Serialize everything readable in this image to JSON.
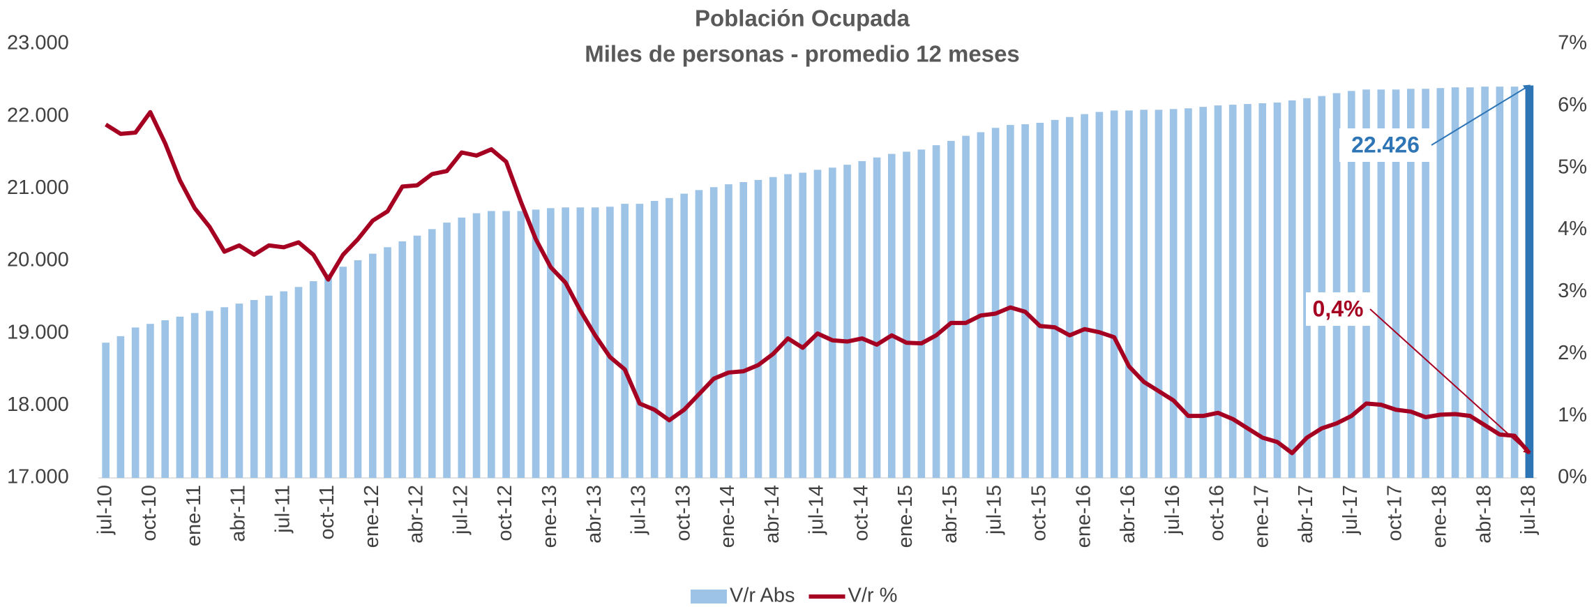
{
  "chart_data": {
    "type": "bar_line",
    "title": "Población Ocupada",
    "subtitle": "Miles de personas - promedio 12 meses",
    "categories": [
      "jul-10",
      null,
      null,
      "oct-10",
      null,
      null,
      "ene-11",
      null,
      null,
      "abr-11",
      null,
      null,
      "jul-11",
      null,
      null,
      "oct-11",
      null,
      null,
      "ene-12",
      null,
      null,
      "abr-12",
      null,
      null,
      "jul-12",
      null,
      null,
      "oct-12",
      null,
      null,
      "ene-13",
      null,
      null,
      "abr-13",
      null,
      null,
      "jul-13",
      null,
      null,
      "oct-13",
      null,
      null,
      "ene-14",
      null,
      null,
      "abr-14",
      null,
      null,
      "jul-14",
      null,
      null,
      "oct-14",
      null,
      null,
      "ene-15",
      null,
      null,
      "abr-15",
      null,
      null,
      "jul-15",
      null,
      null,
      "oct-15",
      null,
      null,
      "ene-16",
      null,
      null,
      "abr-16",
      null,
      null,
      "jul-16",
      null,
      null,
      "oct-16",
      null,
      null,
      "ene-17",
      null,
      null,
      "abr-17",
      null,
      null,
      "jul-17",
      null,
      null,
      "oct-17",
      null,
      null,
      "ene-18",
      null,
      null,
      "abr-18",
      null,
      null,
      "jul-18"
    ],
    "series": [
      {
        "name": "V/r Abs",
        "type": "bar",
        "color": "#9dc3e6",
        "highlight_color": "#2e75b6",
        "values": [
          18870,
          18960,
          19080,
          19130,
          19180,
          19230,
          19280,
          19310,
          19360,
          19410,
          19460,
          19520,
          19580,
          19640,
          19720,
          19820,
          19920,
          20010,
          20100,
          20190,
          20270,
          20350,
          20440,
          20530,
          20600,
          20660,
          20690,
          20690,
          20690,
          20710,
          20730,
          20740,
          20740,
          20740,
          20750,
          20790,
          20790,
          20830,
          20870,
          20930,
          20980,
          21020,
          21060,
          21090,
          21120,
          21160,
          21200,
          21220,
          21260,
          21290,
          21330,
          21380,
          21430,
          21480,
          21510,
          21540,
          21600,
          21660,
          21730,
          21780,
          21840,
          21880,
          21890,
          21910,
          21950,
          21990,
          22030,
          22060,
          22080,
          22080,
          22090,
          22090,
          22100,
          22110,
          22130,
          22150,
          22160,
          22170,
          22180,
          22190,
          22220,
          22250,
          22280,
          22320,
          22350,
          22370,
          22370,
          22370,
          22380,
          22380,
          22390,
          22400,
          22400,
          22410,
          22410,
          22410,
          22426
        ],
        "value_labels": [
          null,
          null,
          null,
          null,
          null,
          null,
          null,
          null,
          null,
          null,
          null,
          null,
          null,
          null,
          null,
          null,
          null,
          null,
          null,
          null,
          null,
          null,
          null,
          null,
          null,
          null,
          null,
          null,
          null,
          null,
          null,
          null,
          null,
          null,
          null,
          null,
          null,
          null,
          null,
          null,
          null,
          null,
          null,
          null,
          null,
          null,
          null,
          null,
          null,
          null,
          null,
          null,
          null,
          null,
          null,
          null,
          null,
          null,
          null,
          null,
          null,
          null,
          null,
          null,
          null,
          null,
          null,
          null,
          null,
          null,
          null,
          null,
          null,
          null,
          null,
          null,
          null,
          null,
          null,
          null,
          null,
          null,
          null,
          null,
          null,
          null,
          null,
          null,
          null,
          null,
          null,
          null,
          null,
          null,
          null,
          null,
          "22.426"
        ]
      },
      {
        "name": "V/r %",
        "type": "line",
        "axis": "y2",
        "color": "#a50021",
        "values": [
          5.7,
          5.55,
          5.57,
          5.9,
          5.4,
          4.8,
          4.35,
          4.05,
          3.65,
          3.75,
          3.6,
          3.75,
          3.72,
          3.8,
          3.6,
          3.2,
          3.6,
          3.85,
          4.15,
          4.3,
          4.7,
          4.72,
          4.9,
          4.95,
          5.25,
          5.2,
          5.3,
          5.1,
          4.45,
          3.85,
          3.4,
          3.15,
          2.7,
          2.3,
          1.95,
          1.75,
          1.2,
          1.1,
          0.93,
          1.1,
          1.35,
          1.6,
          1.7,
          1.72,
          1.82,
          2.0,
          2.25,
          2.1,
          2.33,
          2.22,
          2.2,
          2.25,
          2.15,
          2.3,
          2.18,
          2.17,
          2.3,
          2.5,
          2.5,
          2.62,
          2.65,
          2.75,
          2.68,
          2.45,
          2.43,
          2.3,
          2.4,
          2.35,
          2.27,
          1.8,
          1.55,
          1.4,
          1.25,
          1.0,
          1.0,
          1.05,
          0.95,
          0.8,
          0.65,
          0.58,
          0.4,
          0.65,
          0.8,
          0.88,
          1.0,
          1.2,
          1.18,
          1.1,
          1.07,
          0.98,
          1.02,
          1.03,
          1.0,
          0.85,
          0.7,
          0.68,
          0.4
        ],
        "value_labels": [
          null,
          null,
          null,
          null,
          null,
          null,
          null,
          null,
          null,
          null,
          null,
          null,
          null,
          null,
          null,
          null,
          null,
          null,
          null,
          null,
          null,
          null,
          null,
          null,
          null,
          null,
          null,
          null,
          null,
          null,
          null,
          null,
          null,
          null,
          null,
          null,
          null,
          null,
          null,
          null,
          null,
          null,
          null,
          null,
          null,
          null,
          null,
          null,
          null,
          null,
          null,
          null,
          null,
          null,
          null,
          null,
          null,
          null,
          null,
          null,
          null,
          null,
          null,
          null,
          null,
          null,
          null,
          null,
          null,
          null,
          null,
          null,
          null,
          null,
          null,
          null,
          null,
          null,
          null,
          null,
          null,
          null,
          null,
          null,
          null,
          null,
          null,
          null,
          null,
          null,
          null,
          null,
          null,
          null,
          null,
          null,
          "0,4%"
        ]
      }
    ],
    "ylim": [
      17000,
      23000
    ],
    "yticks": [
      {
        "value": 17000,
        "label": "17.000"
      },
      {
        "value": 18000,
        "label": "18.000"
      },
      {
        "value": 19000,
        "label": "19.000"
      },
      {
        "value": 20000,
        "label": "20.000"
      },
      {
        "value": 21000,
        "label": "21.000"
      },
      {
        "value": 22000,
        "label": "22.000"
      },
      {
        "value": 23000,
        "label": "23.000"
      }
    ],
    "y2lim": [
      0,
      7
    ],
    "y2ticks": [
      {
        "value": 0,
        "label": "0%"
      },
      {
        "value": 1,
        "label": "1%"
      },
      {
        "value": 2,
        "label": "2%"
      },
      {
        "value": 3,
        "label": "3%"
      },
      {
        "value": 4,
        "label": "4%"
      },
      {
        "value": 5,
        "label": "5%"
      },
      {
        "value": 6,
        "label": "6%"
      },
      {
        "value": 7,
        "label": "7%"
      }
    ],
    "grid": false,
    "legend": "bottom"
  }
}
